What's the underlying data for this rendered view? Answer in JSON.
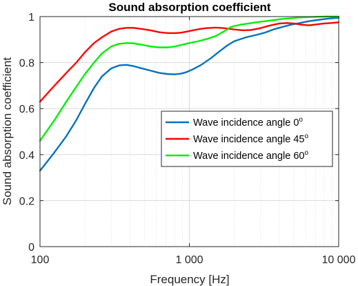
{
  "chart_data": {
    "type": "line",
    "title": "Sound absorption coefficient",
    "xlabel": "Frequency [Hz]",
    "ylabel": "Sound absorption coefficient",
    "xscale": "log",
    "xlim": [
      100,
      10000
    ],
    "ylim": [
      0,
      1
    ],
    "xticks": [
      100,
      1000,
      10000
    ],
    "xtick_labels": [
      "100",
      "1 000",
      "10 000"
    ],
    "yticks": [
      0,
      0.2,
      0.4,
      0.6,
      0.8,
      1
    ],
    "ytick_labels": [
      "0",
      "0.2",
      "0.4",
      "0.6",
      "0.8",
      "1"
    ],
    "grid": "on",
    "legend_position": "center-right",
    "legend_degree_symbol": "o",
    "series": [
      {
        "name": "Wave incidence angle 0",
        "color": "#0072bd",
        "x": [
          100,
          125,
          150,
          175,
          200,
          230,
          260,
          300,
          340,
          380,
          420,
          480,
          550,
          630,
          720,
          800,
          880,
          950,
          1050,
          1200,
          1400,
          1600,
          1800,
          2000,
          2400,
          2800,
          3200,
          3700,
          4200,
          4800,
          5500,
          6300,
          7200,
          8200,
          9200,
          10000
        ],
        "y": [
          0.33,
          0.41,
          0.48,
          0.55,
          0.62,
          0.69,
          0.74,
          0.775,
          0.788,
          0.79,
          0.785,
          0.775,
          0.765,
          0.755,
          0.75,
          0.749,
          0.752,
          0.758,
          0.77,
          0.79,
          0.82,
          0.85,
          0.875,
          0.893,
          0.91,
          0.92,
          0.93,
          0.945,
          0.955,
          0.965,
          0.972,
          0.98,
          0.985,
          0.99,
          0.993,
          0.995
        ]
      },
      {
        "name": "Wave incidence angle 45",
        "color": "#ff0000",
        "x": [
          100,
          125,
          150,
          175,
          200,
          230,
          260,
          300,
          340,
          380,
          420,
          480,
          550,
          630,
          720,
          800,
          880,
          1000,
          1150,
          1300,
          1500,
          1700,
          2000,
          2300,
          2600,
          3000,
          3500,
          4000,
          4500,
          5000,
          5600,
          6300,
          7100,
          8000,
          8900,
          10000
        ],
        "y": [
          0.63,
          0.7,
          0.755,
          0.8,
          0.845,
          0.885,
          0.91,
          0.935,
          0.947,
          0.951,
          0.951,
          0.946,
          0.94,
          0.932,
          0.928,
          0.928,
          0.93,
          0.937,
          0.945,
          0.95,
          0.952,
          0.95,
          0.944,
          0.94,
          0.942,
          0.95,
          0.962,
          0.97,
          0.972,
          0.97,
          0.965,
          0.962,
          0.966,
          0.97,
          0.972,
          0.975
        ]
      },
      {
        "name": "Wave incidence angle 60",
        "color": "#00ee00",
        "x": [
          100,
          125,
          150,
          175,
          200,
          230,
          260,
          300,
          340,
          380,
          420,
          480,
          550,
          630,
          720,
          800,
          900,
          1000,
          1150,
          1300,
          1500,
          1700,
          1900,
          2200,
          2500,
          2800,
          3200,
          3700,
          4200,
          4800,
          5500,
          6300,
          7200,
          8200,
          9200,
          10000
        ],
        "y": [
          0.46,
          0.55,
          0.63,
          0.695,
          0.75,
          0.8,
          0.84,
          0.87,
          0.882,
          0.885,
          0.884,
          0.878,
          0.87,
          0.866,
          0.866,
          0.87,
          0.878,
          0.885,
          0.893,
          0.902,
          0.915,
          0.935,
          0.955,
          0.965,
          0.97,
          0.975,
          0.98,
          0.985,
          0.99,
          0.993,
          0.996,
          0.998,
          0.999,
          1.0,
          1.0,
          1.0
        ]
      }
    ]
  }
}
